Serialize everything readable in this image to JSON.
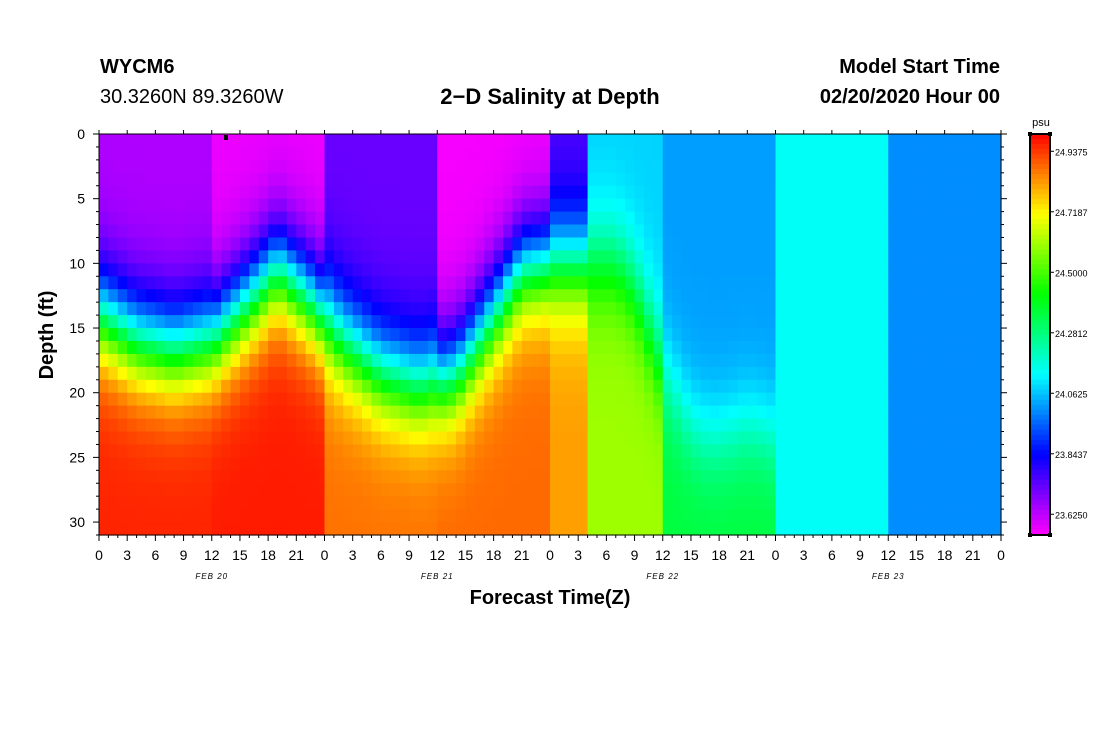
{
  "header": {
    "station_id": "WYCM6",
    "station_coords": "30.3260N 89.3260W",
    "title": "2−D Salinity at Depth",
    "start_label": "Model Start Time",
    "start_value": "02/20/2020 Hour 00"
  },
  "chart_data": {
    "type": "heatmap",
    "title": "2−D Salinity at Depth",
    "xlabel": "Forecast Time(Z)",
    "ylabel": "Depth (ft)",
    "x_range_hours": [
      0,
      96
    ],
    "ylim": [
      0,
      31
    ],
    "y_inverted": true,
    "x_tick_labels": [
      "0",
      "3",
      "6",
      "9",
      "12",
      "15",
      "18",
      "21",
      "0",
      "3",
      "6",
      "9",
      "12",
      "15",
      "18",
      "21",
      "0",
      "3",
      "6",
      "9",
      "12",
      "15",
      "18",
      "21",
      "0",
      "3",
      "6",
      "9",
      "12",
      "15",
      "18",
      "21",
      "0"
    ],
    "x_tick_hours": [
      0,
      3,
      6,
      9,
      12,
      15,
      18,
      21,
      24,
      27,
      30,
      33,
      36,
      39,
      42,
      45,
      48,
      51,
      54,
      57,
      60,
      63,
      66,
      69,
      72,
      75,
      78,
      81,
      84,
      87,
      90,
      93,
      96
    ],
    "date_labels": [
      {
        "label": "FEB 20",
        "hour": 12
      },
      {
        "label": "FEB 21",
        "hour": 36
      },
      {
        "label": "FEB 22",
        "hour": 60
      },
      {
        "label": "FEB 23",
        "hour": 84
      }
    ],
    "y_ticks": [
      0,
      5,
      10,
      15,
      20,
      25,
      30
    ],
    "colorbar": {
      "unit": "psu",
      "range": [
        23.55,
        25.0
      ],
      "tick_labels": [
        "24.9375",
        "24.7187",
        "24.5000",
        "24.2812",
        "24.0625",
        "23.8437",
        "23.6250"
      ],
      "tick_values": [
        24.9375,
        24.71875,
        24.5,
        24.28125,
        24.0625,
        23.84375,
        23.625
      ]
    },
    "halocline_depth_ft": {
      "hours": [
        0,
        4,
        8,
        12,
        16,
        19,
        22,
        26,
        30,
        34,
        38,
        42,
        45,
        48,
        50,
        52,
        55,
        57,
        60,
        62,
        63,
        65,
        67,
        69,
        71,
        73,
        96
      ],
      "depths": [
        14,
        16,
        16.8,
        16,
        13,
        10.5,
        12.5,
        16,
        18.5,
        19.5,
        18.5,
        14,
        10.5,
        10,
        10,
        10,
        10,
        12,
        18,
        21,
        22.5,
        23.5,
        23.2,
        22.5,
        23,
        24,
        24
      ]
    },
    "column_profiles": [
      {
        "hours": [
          0,
          12
        ],
        "surface_psu": 23.64,
        "bottom_psu": 24.96
      },
      {
        "hours": [
          12,
          24
        ],
        "surface_psu": 23.57,
        "bottom_psu": 24.97
      },
      {
        "hours": [
          24,
          36
        ],
        "surface_psu": 23.72,
        "bottom_psu": 24.87
      },
      {
        "hours": [
          36,
          48
        ],
        "surface_psu": 23.56,
        "bottom_psu": 24.88
      },
      {
        "hours": [
          48,
          52
        ],
        "surface_psu": 23.75,
        "bottom_psu": 24.82
      },
      {
        "hours": [
          52,
          60
        ],
        "surface_psu": 24.08,
        "bottom_psu": 24.6
      },
      {
        "hours": [
          60,
          72
        ],
        "surface_psu": 24.02,
        "bottom_psu": 24.35
      },
      {
        "hours": [
          72,
          84
        ],
        "surface_psu": 24.14,
        "bottom_psu": 24.14
      },
      {
        "hours": [
          84,
          96
        ],
        "surface_psu": 24.0,
        "bottom_psu": 24.0
      }
    ]
  }
}
